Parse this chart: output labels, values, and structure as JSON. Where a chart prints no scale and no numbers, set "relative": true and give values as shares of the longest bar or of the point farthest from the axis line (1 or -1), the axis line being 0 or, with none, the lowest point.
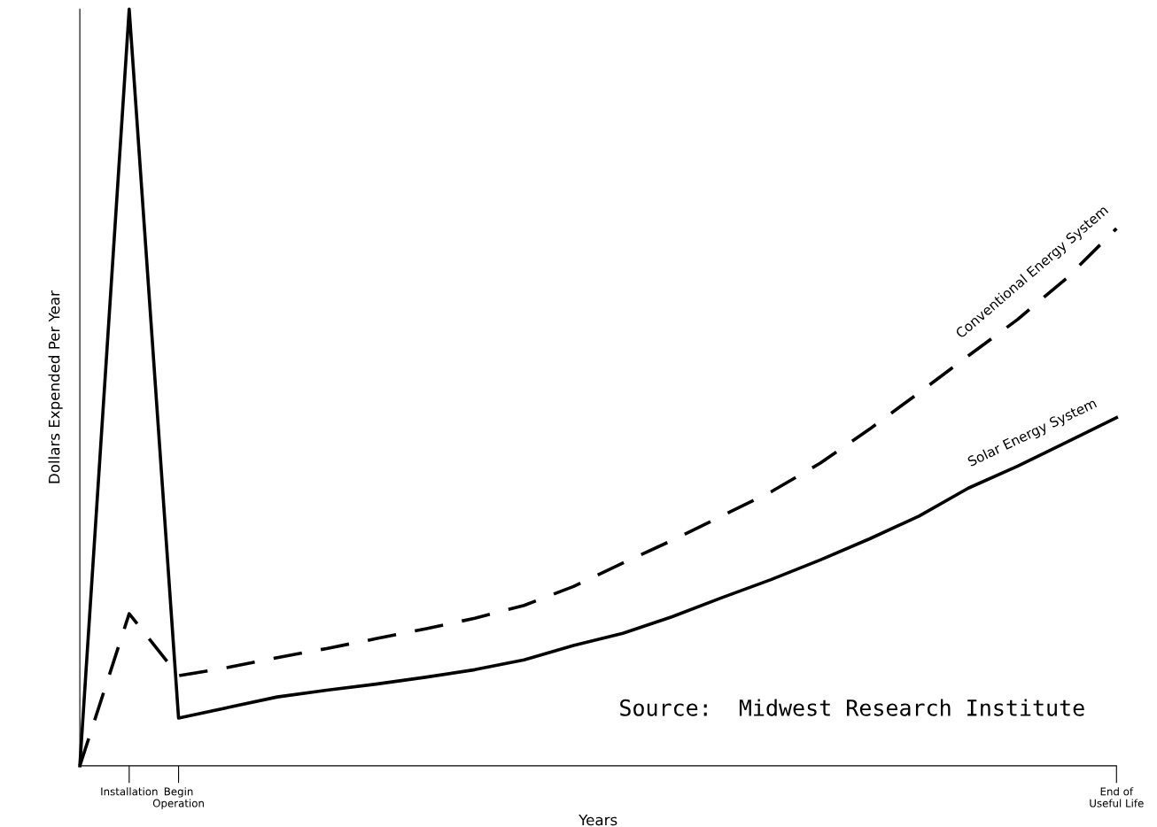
{
  "chart_data": {
    "type": "line",
    "relative": true,
    "xlabel": "Years",
    "ylabel": "Dollars Expended Per Year",
    "categories": [
      null,
      "Installation",
      "Begin Operation",
      null,
      null,
      null,
      null,
      null,
      null,
      null,
      null,
      null,
      null,
      null,
      null,
      null,
      null,
      null,
      null,
      null,
      null,
      "End of\nUseful Life"
    ],
    "series": [
      {
        "name": "Conventional Energy System",
        "color": "#000000",
        "line_style": "dashed",
        "values": [
          0,
          0.201,
          0.119,
          0.13,
          0.143,
          0.155,
          0.168,
          0.181,
          0.195,
          0.212,
          0.237,
          0.268,
          0.298,
          0.33,
          0.362,
          0.4,
          0.445,
          0.493,
          0.542,
          0.59,
          0.645,
          0.71
        ]
      },
      {
        "name": "Solar Energy System",
        "color": "#000000",
        "line_style": "solid",
        "values": [
          0,
          1,
          0.063,
          0.077,
          0.091,
          0.1,
          0.108,
          0.117,
          0.127,
          0.14,
          0.159,
          0.175,
          0.197,
          0.222,
          0.246,
          0.272,
          0.3,
          0.33,
          0.367,
          0.396,
          0.428,
          0.46
        ]
      }
    ],
    "annotations": [
      "Source:  Midwest Research Institute"
    ],
    "grid": false,
    "legend": false,
    "marker": "none"
  }
}
